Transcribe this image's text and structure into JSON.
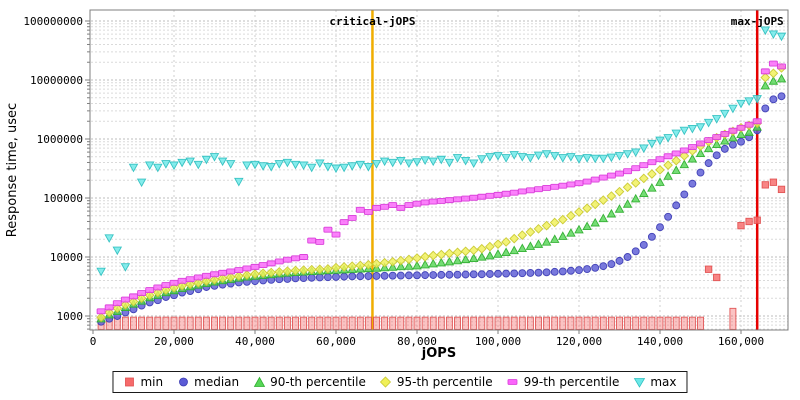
{
  "chart_data": {
    "type": "scatter",
    "title": "",
    "xlabel": "jOPS",
    "ylabel": "Response time, usec",
    "y_scale": "log",
    "grid": true,
    "legend_position": "bottom",
    "xlim": [
      0,
      171600
    ],
    "ylim": [
      580,
      150000000
    ],
    "x_axis": {
      "tick_values": [
        0,
        20000,
        40000,
        60000,
        80000,
        100000,
        120000,
        140000,
        160000
      ],
      "tick_labels": [
        "0",
        "20,000",
        "40,000",
        "60,000",
        "80,000",
        "100,000",
        "120,000",
        "140,000",
        "160,000"
      ]
    },
    "y_axis": {
      "tick_values": [
        1000,
        10000,
        100000,
        1000000,
        10000000,
        100000000
      ],
      "tick_labels": [
        "1000",
        "10000",
        "100000",
        "1000000",
        "10000000",
        "100000000"
      ]
    },
    "annotations": [
      {
        "label": "critical-jOPS",
        "x": 69000,
        "color": "#f0ad00"
      },
      {
        "label": "max-jOPS",
        "x": 164000,
        "color": "#e60000"
      }
    ],
    "x": [
      2000,
      4000,
      6000,
      8000,
      10000,
      12000,
      14000,
      16000,
      18000,
      20000,
      22000,
      24000,
      26000,
      28000,
      30000,
      32000,
      34000,
      36000,
      38000,
      40000,
      42000,
      44000,
      46000,
      48000,
      50000,
      52000,
      54000,
      56000,
      58000,
      60000,
      62000,
      64000,
      66000,
      68000,
      70000,
      72000,
      74000,
      76000,
      78000,
      80000,
      82000,
      84000,
      86000,
      88000,
      90000,
      92000,
      94000,
      96000,
      98000,
      100000,
      102000,
      104000,
      106000,
      108000,
      110000,
      112000,
      114000,
      116000,
      118000,
      120000,
      122000,
      124000,
      126000,
      128000,
      130000,
      132000,
      134000,
      136000,
      138000,
      140000,
      142000,
      144000,
      146000,
      148000,
      150000,
      152000,
      154000,
      156000,
      158000,
      160000,
      162000,
      164000,
      166000,
      168000,
      170000
    ],
    "series": [
      {
        "name": "min",
        "marker": "square",
        "color": "#f66a6a",
        "edge": "#e05050",
        "values": [
          850,
          850,
          850,
          850,
          850,
          850,
          850,
          850,
          850,
          850,
          850,
          850,
          850,
          850,
          850,
          850,
          850,
          850,
          850,
          850,
          850,
          850,
          850,
          850,
          850,
          850,
          850,
          850,
          850,
          850,
          850,
          850,
          850,
          850,
          850,
          850,
          850,
          850,
          850,
          850,
          850,
          850,
          850,
          850,
          850,
          850,
          850,
          850,
          850,
          850,
          850,
          850,
          850,
          850,
          850,
          850,
          850,
          850,
          850,
          850,
          850,
          850,
          850,
          850,
          850,
          850,
          850,
          850,
          850,
          850,
          850,
          850,
          850,
          850,
          850,
          6200,
          4500,
          null,
          1200,
          34000,
          40000,
          42000,
          167000,
          185000,
          140000
        ]
      },
      {
        "name": "median",
        "marker": "circle",
        "color": "#5b5bd6",
        "edge": "#3c3cb4",
        "values": [
          800,
          900,
          1000,
          1150,
          1300,
          1500,
          1700,
          1850,
          2100,
          2250,
          2500,
          2650,
          2850,
          3100,
          3250,
          3400,
          3550,
          3700,
          3800,
          3900,
          4000,
          4100,
          4200,
          4250,
          4350,
          4400,
          4450,
          4500,
          4550,
          4600,
          4650,
          4700,
          4720,
          4750,
          4780,
          4800,
          4830,
          4850,
          4880,
          4900,
          4930,
          4950,
          4980,
          5000,
          5020,
          5050,
          5080,
          5100,
          5150,
          5200,
          5230,
          5270,
          5320,
          5370,
          5430,
          5500,
          5600,
          5700,
          5850,
          6000,
          6250,
          6550,
          7000,
          7600,
          8600,
          10000,
          12500,
          16000,
          22000,
          32000,
          48000,
          75000,
          115000,
          175000,
          270000,
          390000,
          530000,
          680000,
          800000,
          900000,
          1070000,
          1400000,
          3300000,
          4700000,
          5300000
        ]
      },
      {
        "name": "90-th percentile",
        "marker": "triangle-up",
        "color": "#57d657",
        "edge": "#2fae2f",
        "values": [
          900,
          1050,
          1200,
          1400,
          1600,
          1800,
          2050,
          2250,
          2500,
          2700,
          2950,
          3150,
          3350,
          3600,
          3800,
          4000,
          4200,
          4400,
          4600,
          4750,
          4900,
          5050,
          5200,
          5350,
          5500,
          5600,
          5700,
          5800,
          5900,
          6000,
          6100,
          6200,
          6300,
          6400,
          6500,
          6600,
          6750,
          6900,
          7000,
          7100,
          7400,
          7700,
          8000,
          8300,
          8700,
          9100,
          9500,
          10000,
          10500,
          11200,
          12000,
          12900,
          14000,
          15200,
          16500,
          18000,
          20000,
          22500,
          25500,
          29000,
          33000,
          38000,
          45000,
          54000,
          65000,
          79000,
          97000,
          120000,
          148000,
          185000,
          235000,
          295000,
          370000,
          460000,
          570000,
          690000,
          810000,
          930000,
          1050000,
          1200000,
          1300000,
          1600000,
          8000000,
          9600000,
          10500000
        ]
      },
      {
        "name": "95-th percentile",
        "marker": "diamond",
        "color": "#f0f058",
        "edge": "#c8c832",
        "values": [
          950,
          1150,
          1350,
          1550,
          1750,
          2000,
          2250,
          2500,
          2750,
          3000,
          3250,
          3450,
          3650,
          3900,
          4100,
          4350,
          4550,
          4750,
          4950,
          5150,
          5300,
          5450,
          5600,
          5750,
          5900,
          6000,
          6100,
          6200,
          6300,
          6600,
          6800,
          7000,
          7200,
          7400,
          7700,
          8000,
          8300,
          8700,
          9100,
          9600,
          10100,
          10600,
          11000,
          11500,
          12000,
          12500,
          13000,
          13800,
          15000,
          16500,
          18000,
          20500,
          23500,
          26500,
          30000,
          34000,
          38500,
          43000,
          50000,
          58000,
          67000,
          78000,
          92000,
          108000,
          128000,
          152000,
          180000,
          215000,
          255000,
          300000,
          360000,
          430000,
          520000,
          630000,
          760000,
          900000,
          1050000,
          1200000,
          1350000,
          1550000,
          1700000,
          1850000,
          11000000,
          13000000,
          16000000
        ]
      },
      {
        "name": "99-th percentile",
        "marker": "hbar",
        "color": "#fa64fa",
        "edge": "#d83cd8",
        "values": [
          1200,
          1400,
          1650,
          1900,
          2150,
          2450,
          2750,
          3050,
          3350,
          3650,
          3950,
          4200,
          4500,
          4800,
          5100,
          5400,
          5700,
          6000,
          6400,
          6800,
          7300,
          7800,
          8400,
          9000,
          9500,
          10000,
          19000,
          18000,
          29000,
          24000,
          39000,
          46000,
          63000,
          58000,
          68000,
          71000,
          76000,
          68000,
          76000,
          80000,
          84000,
          87000,
          89000,
          92000,
          95000,
          98000,
          101000,
          105000,
          109000,
          113000,
          118000,
          123000,
          129000,
          135000,
          141000,
          148000,
          155000,
          162000,
          170000,
          178000,
          190000,
          205000,
          222000,
          240000,
          260000,
          285000,
          320000,
          360000,
          405000,
          455000,
          510000,
          570000,
          640000,
          730000,
          840000,
          960000,
          1080000,
          1220000,
          1380000,
          1550000,
          1750000,
          2000000,
          14000000,
          19000000,
          17000000
        ]
      },
      {
        "name": "max",
        "marker": "triangle-down",
        "color": "#6ae8e8",
        "edge": "#30c0c0",
        "values": [
          5700,
          21000,
          13000,
          6800,
          330000,
          185000,
          360000,
          330000,
          380000,
          360000,
          400000,
          420000,
          370000,
          450000,
          500000,
          420000,
          380000,
          190000,
          360000,
          370000,
          350000,
          340000,
          380000,
          400000,
          370000,
          360000,
          330000,
          390000,
          340000,
          320000,
          330000,
          350000,
          370000,
          340000,
          380000,
          420000,
          400000,
          430000,
          390000,
          410000,
          440000,
          420000,
          450000,
          400000,
          480000,
          430000,
          390000,
          460000,
          500000,
          520000,
          480000,
          540000,
          500000,
          480000,
          530000,
          560000,
          520000,
          480000,
          500000,
          460000,
          480000,
          470000,
          470000,
          490000,
          520000,
          560000,
          600000,
          700000,
          840000,
          950000,
          1050000,
          1250000,
          1400000,
          1500000,
          1600000,
          1900000,
          2200000,
          2700000,
          3300000,
          4000000,
          4400000,
          4800000,
          70000000,
          60000000,
          55000000
        ]
      }
    ]
  }
}
